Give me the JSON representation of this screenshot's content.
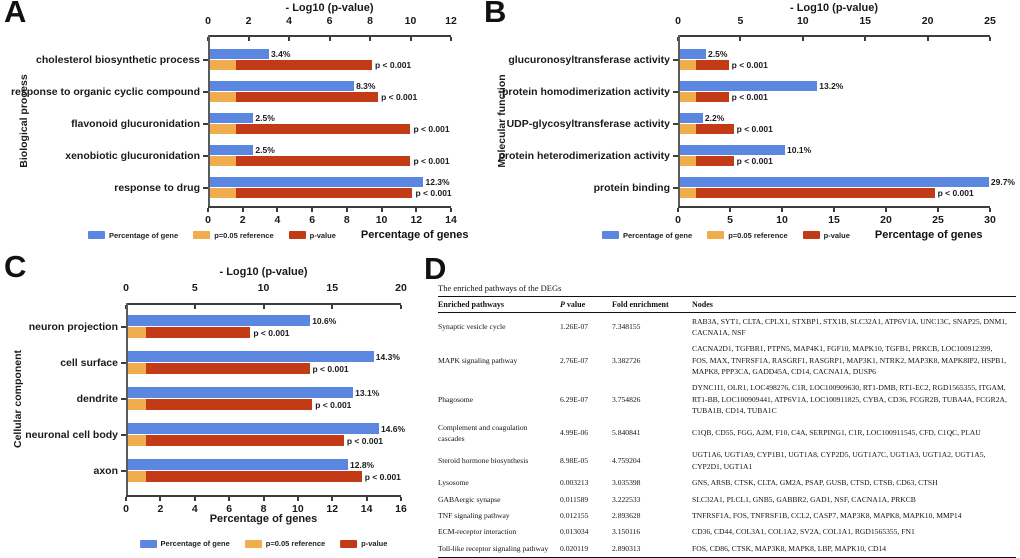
{
  "panels": {
    "a": {
      "letter": "A"
    },
    "b": {
      "letter": "B"
    },
    "c": {
      "letter": "C"
    },
    "d": {
      "letter": "D"
    }
  },
  "colors": {
    "bar_blue": "#5b87e0",
    "bar_orange": "#f0ad4e",
    "bar_red": "#c23b16",
    "axis": "#3d3d3d"
  },
  "legend": {
    "items": [
      {
        "label": "Percentage of gene",
        "color_key": "bar_blue",
        "icon_name": "blue-swatch-icon"
      },
      {
        "label": "p=0.05 reference",
        "color_key": "bar_orange",
        "icon_name": "orange-swatch-icon"
      },
      {
        "label": "p-value",
        "color_key": "bar_red",
        "icon_name": "red-swatch-icon"
      }
    ]
  },
  "chart_data": [
    {
      "type": "bar",
      "panel": "A",
      "group_label": "Biological process",
      "top_axis": {
        "title": "- Log10 (p-value)",
        "min": 0,
        "max": 12,
        "ticks": [
          0,
          2,
          4,
          6,
          8,
          10,
          12
        ]
      },
      "bottom_axis": {
        "title": "Percentage of genes",
        "min": 0,
        "max": 14,
        "ticks": [
          0,
          2,
          4,
          6,
          8,
          10,
          12,
          14
        ]
      },
      "reference_neg_log10_p": 1.3,
      "categories": [
        "cholesterol biosynthetic process",
        "response to organic cyclic compound",
        "flavonoid glucuronidation",
        "xenobiotic glucuronidation",
        "response to drug"
      ],
      "series": [
        {
          "name": "Percentage of gene",
          "axis": "bottom",
          "values": [
            3.4,
            8.3,
            2.5,
            2.5,
            12.3
          ],
          "labels": [
            "3.4%",
            "8.3%",
            "2.5%",
            "2.5%",
            "12.3%"
          ]
        },
        {
          "name": "p-value",
          "axis": "top",
          "values": [
            8.0,
            8.3,
            9.9,
            9.9,
            10.0
          ],
          "labels": [
            "p < 0.001",
            "p < 0.001",
            "p < 0.001",
            "p < 0.001",
            "p < 0.001"
          ]
        },
        {
          "name": "p=0.05 reference",
          "axis": "top",
          "values": [
            1.3,
            1.3,
            1.3,
            1.3,
            1.3
          ]
        }
      ]
    },
    {
      "type": "bar",
      "panel": "B",
      "group_label": "Molecular function",
      "top_axis": {
        "title": "- Log10 (p-value)",
        "min": 0,
        "max": 25,
        "ticks": [
          0,
          5,
          10,
          15,
          20,
          25
        ]
      },
      "bottom_axis": {
        "title": "Percentage of genes",
        "min": 0,
        "max": 30,
        "ticks": [
          0,
          5,
          10,
          15,
          20,
          25,
          30
        ]
      },
      "reference_neg_log10_p": 1.3,
      "categories": [
        "glucuronosyltransferase activity",
        "protein homodimerization activity",
        "UDP-glycosyltransferase activity",
        "protein heterodimerization activity",
        "protein binding"
      ],
      "series": [
        {
          "name": "Percentage of gene",
          "axis": "bottom",
          "values": [
            2.5,
            13.2,
            2.2,
            10.1,
            29.7
          ],
          "labels": [
            "2.5%",
            "13.2%",
            "2.2%",
            "10.1%",
            "29.7%"
          ]
        },
        {
          "name": "p-value",
          "axis": "top",
          "values": [
            3.9,
            3.9,
            4.3,
            4.3,
            20.4
          ],
          "labels": [
            "p < 0.001",
            "p < 0.001",
            "p < 0.001",
            "p < 0.001",
            "p < 0.001"
          ]
        },
        {
          "name": "p=0.05 reference",
          "axis": "top",
          "values": [
            1.3,
            1.3,
            1.3,
            1.3,
            1.3
          ]
        }
      ]
    },
    {
      "type": "bar",
      "panel": "C",
      "group_label": "Cellular component",
      "top_axis": {
        "title": "- Log10 (p-value)",
        "min": 0,
        "max": 20,
        "ticks": [
          0,
          5,
          10,
          15,
          20
        ]
      },
      "bottom_axis": {
        "title": "Percentage of genes",
        "min": 0,
        "max": 16,
        "ticks": [
          0,
          2,
          4,
          6,
          8,
          10,
          12,
          14,
          16
        ]
      },
      "reference_neg_log10_p": 1.3,
      "categories": [
        "neuron projection",
        "cell surface",
        "dendrite",
        "neuronal cell body",
        "axon"
      ],
      "series": [
        {
          "name": "Percentage of gene",
          "axis": "bottom",
          "values": [
            10.6,
            14.3,
            13.1,
            14.6,
            12.8
          ],
          "labels": [
            "10.6%",
            "14.3%",
            "13.1%",
            "14.6%",
            "12.8%"
          ]
        },
        {
          "name": "p-value",
          "axis": "top",
          "values": [
            8.9,
            13.2,
            13.4,
            15.7,
            17.0
          ],
          "labels": [
            "p < 0.001",
            "p < 0.001",
            "p < 0.001",
            "p < 0.001",
            "p < 0.001"
          ]
        },
        {
          "name": "p=0.05 reference",
          "axis": "top",
          "values": [
            1.3,
            1.3,
            1.3,
            1.3,
            1.3
          ]
        }
      ]
    },
    {
      "type": "table",
      "panel": "D",
      "title": "The enriched pathways of the DEGs",
      "columns": [
        "Enriched pathways",
        "P value",
        "Fold enrichment",
        "Nodes"
      ],
      "rows": [
        [
          "Synaptic vesicle cycle",
          "1.26E-07",
          "7.348155",
          "RAB3A, SYT1, CLTA, CPLX1, STXBP1, STX1B, SLC32A1, ATP6V1A, UNC13C, SNAP25, DNM1, CACNA1A, NSF"
        ],
        [
          "MAPK signaling pathway",
          "2.76E-07",
          "3.382726",
          "CACNA2D1, TGFBR1, PTPN5, MAP4K1, FGF10, MAPK10, TGFB1, PRKCB, LOC100912399, FOS, MAX, TNFRSF1A, RASGRF1, RASGRP1, MAP3K1, NTRK2, MAP3K8, MAPK8IP2, HSPB1, MAPK8, PPP3CA, GADD45A, CD14, CACNA1A, DUSP6"
        ],
        [
          "Phagosome",
          "6.29E-07",
          "3.754826",
          "DYNC1I1, OLR1, LOC498276, C1R, LOC100909630, RT1-DMB, RT1-EC2, RGD1565355, ITGAM, RT1-BB, LOC100909441, ATP6V1A, LOC100911825, CYBA, CD36, FCGR2B, TUBA4A, FCGR2A, TUBA1B, CD14, TUBA1C"
        ],
        [
          "Complement and coagulation cascades",
          "4.99E-06",
          "5.840841",
          "C1QB, CD55, FGG, A2M, F10, C4A, SERPING1, C1R, LOC100911545, CFD, C1QC, PLAU"
        ],
        [
          "Steroid hormone biosynthesis",
          "8.98E-05",
          "4.759204",
          "UGT1A6, UGT1A9, CYP1B1, UGT1A8, CYP2D5, UGT1A7C, UGT1A3, UGT1A2, UGT1A5, CYP2D1, UGT1A1"
        ],
        [
          "Lysosome",
          "0.003213",
          "3.035398",
          "GNS, ARSB, CTSK, CLTA, GM2A, PSAP, GUSB, CTSD, CTSB, CD63, CTSH"
        ],
        [
          "GABAergic synapse",
          "0.011589",
          "3.222533",
          "SLC32A1, PLCL1, GNB5, GABBR2, GAD1, NSF, CACNA1A, PRKCB"
        ],
        [
          "TNF signaling pathway",
          "0.012155",
          "2.893628",
          "TNFRSF1A, FOS, TNFRSF1B, CCL2, CASP7, MAP3K8, MAPK8, MAPK10, MMP14"
        ],
        [
          "ECM-receptor interaction",
          "0.013034",
          "3.150116",
          "CD36, CD44, COL3A1, COL1A2, SV2A, COL1A1, RGD1565355, FN1"
        ],
        [
          "Toll-like receptor signaling pathway",
          "0.020119",
          "2.890313",
          "FOS, CD86, CTSK, MAP3K8, MAPK8, LBP, MAPK10, CD14"
        ]
      ]
    }
  ]
}
